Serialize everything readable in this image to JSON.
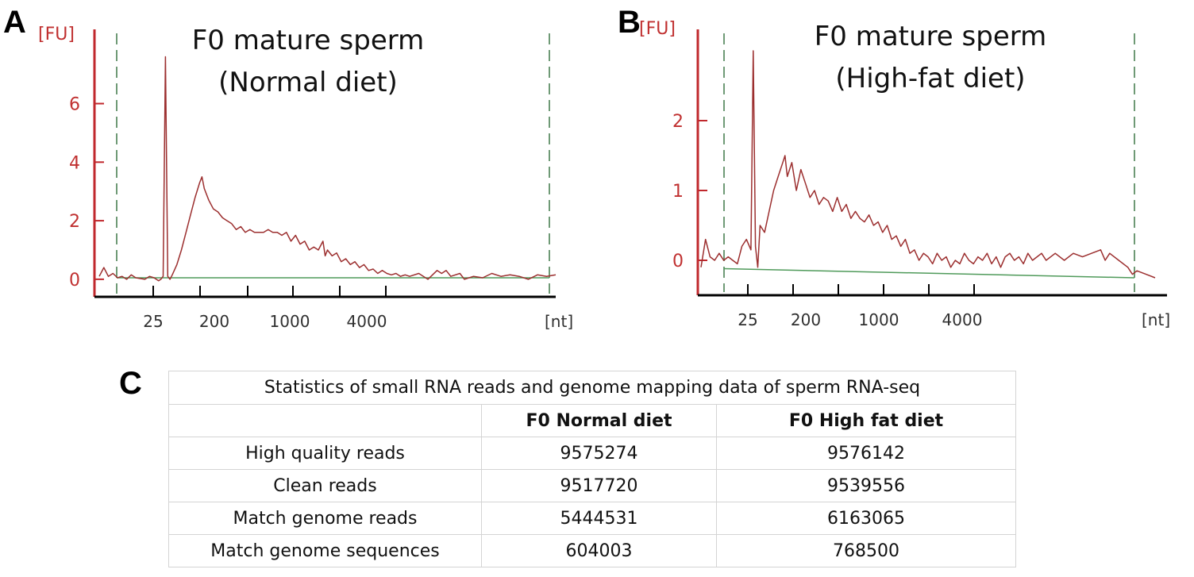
{
  "panels": [
    {
      "letter": "A",
      "title_line1": "F0 mature sperm",
      "title_line2": "(Normal diet)"
    },
    {
      "letter": "B",
      "title_line1": "F0 mature sperm",
      "title_line2": "(High-fat diet)"
    },
    {
      "letter": "C"
    }
  ],
  "colors": {
    "axis": "#c0282d",
    "trace": "#9c2f2f",
    "baseline": "#4f9a5a",
    "marker": "#6f9a76"
  },
  "chart_data": [
    {
      "type": "line",
      "title": "F0 mature sperm (Normal diet)",
      "ylabel": "[FU]",
      "xlabel": "[nt]",
      "yticks": [
        0,
        2,
        4,
        6
      ],
      "ylim": [
        -0.6,
        8.4
      ],
      "xlim": [
        0,
        100
      ],
      "xtick_labels": [
        "25",
        "200",
        "1000",
        "4000"
      ],
      "series": [
        {
          "values": [
            [
              0,
              0.1
            ],
            [
              1,
              0.4
            ],
            [
              2,
              0.1
            ],
            [
              3,
              0.2
            ],
            [
              4,
              0.05
            ],
            [
              5,
              0.1
            ],
            [
              6,
              0
            ],
            [
              7,
              0.15
            ],
            [
              8,
              0.05
            ],
            [
              10,
              0
            ],
            [
              11,
              0.1
            ],
            [
              12,
              0.05
            ],
            [
              13,
              -0.05
            ],
            [
              13.5,
              0
            ],
            [
              14,
              0.1
            ],
            [
              14.5,
              7.6
            ],
            [
              15,
              0.1
            ],
            [
              15.5,
              0
            ],
            [
              16,
              0.15
            ],
            [
              17,
              0.5
            ],
            [
              18,
              1.0
            ],
            [
              19,
              1.6
            ],
            [
              20,
              2.2
            ],
            [
              21,
              2.8
            ],
            [
              22,
              3.3
            ],
            [
              22.5,
              3.5
            ],
            [
              23,
              3.1
            ],
            [
              24,
              2.7
            ],
            [
              25,
              2.4
            ],
            [
              26,
              2.3
            ],
            [
              27,
              2.1
            ],
            [
              28,
              2.0
            ],
            [
              29,
              1.9
            ],
            [
              30,
              1.7
            ],
            [
              31,
              1.8
            ],
            [
              32,
              1.6
            ],
            [
              33,
              1.7
            ],
            [
              34,
              1.6
            ],
            [
              35,
              1.6
            ],
            [
              36,
              1.6
            ],
            [
              37,
              1.7
            ],
            [
              38,
              1.6
            ],
            [
              39,
              1.6
            ],
            [
              40,
              1.5
            ],
            [
              41,
              1.6
            ],
            [
              42,
              1.3
            ],
            [
              43,
              1.5
            ],
            [
              44,
              1.2
            ],
            [
              45,
              1.3
            ],
            [
              46,
              1.0
            ],
            [
              47,
              1.1
            ],
            [
              48,
              1.0
            ],
            [
              49,
              1.3
            ],
            [
              49.5,
              0.8
            ],
            [
              50,
              1.0
            ],
            [
              51,
              0.8
            ],
            [
              52,
              0.9
            ],
            [
              53,
              0.6
            ],
            [
              54,
              0.7
            ],
            [
              55,
              0.5
            ],
            [
              56,
              0.6
            ],
            [
              57,
              0.4
            ],
            [
              58,
              0.5
            ],
            [
              59,
              0.3
            ],
            [
              60,
              0.35
            ],
            [
              61,
              0.2
            ],
            [
              62,
              0.3
            ],
            [
              63,
              0.2
            ],
            [
              64,
              0.15
            ],
            [
              65,
              0.2
            ],
            [
              66,
              0.1
            ],
            [
              67,
              0.15
            ],
            [
              68,
              0.1
            ],
            [
              70,
              0.2
            ],
            [
              71,
              0.1
            ],
            [
              72,
              0
            ],
            [
              74,
              0.3
            ],
            [
              75,
              0.2
            ],
            [
              76,
              0.3
            ],
            [
              77,
              0.1
            ],
            [
              79,
              0.2
            ],
            [
              80,
              0
            ],
            [
              82,
              0.1
            ],
            [
              84,
              0.05
            ],
            [
              86,
              0.2
            ],
            [
              88,
              0.1
            ],
            [
              90,
              0.15
            ],
            [
              92,
              0.1
            ],
            [
              94,
              0
            ],
            [
              96,
              0.15
            ],
            [
              98,
              0.1
            ],
            [
              100,
              0.15
            ]
          ]
        }
      ]
    },
    {
      "type": "line",
      "title": "F0 mature sperm (High-fat diet)",
      "ylabel": "[FU]",
      "xlabel": "[nt]",
      "yticks": [
        0,
        1,
        2
      ],
      "ylim": [
        -0.5,
        3.25
      ],
      "xlim": [
        0,
        100
      ],
      "xtick_labels": [
        "25",
        "200",
        "1000",
        "4000"
      ],
      "series": [
        {
          "values": [
            [
              0,
              -0.1
            ],
            [
              1,
              0.3
            ],
            [
              2,
              0.05
            ],
            [
              3,
              0
            ],
            [
              4,
              0.1
            ],
            [
              5,
              0
            ],
            [
              6,
              0.05
            ],
            [
              7,
              0
            ],
            [
              8,
              -0.05
            ],
            [
              9,
              0.2
            ],
            [
              10,
              0.3
            ],
            [
              11,
              0.15
            ],
            [
              11.5,
              3.0
            ],
            [
              12,
              0.2
            ],
            [
              12.5,
              -0.1
            ],
            [
              13,
              0.5
            ],
            [
              14,
              0.4
            ],
            [
              15,
              0.7
            ],
            [
              16,
              1.0
            ],
            [
              17,
              1.2
            ],
            [
              18,
              1.4
            ],
            [
              18.5,
              1.5
            ],
            [
              19,
              1.2
            ],
            [
              20,
              1.4
            ],
            [
              21,
              1.0
            ],
            [
              22,
              1.3
            ],
            [
              23,
              1.1
            ],
            [
              24,
              0.9
            ],
            [
              25,
              1.0
            ],
            [
              26,
              0.8
            ],
            [
              27,
              0.9
            ],
            [
              28,
              0.85
            ],
            [
              29,
              0.7
            ],
            [
              30,
              0.9
            ],
            [
              31,
              0.7
            ],
            [
              32,
              0.8
            ],
            [
              33,
              0.6
            ],
            [
              34,
              0.7
            ],
            [
              35,
              0.6
            ],
            [
              36,
              0.55
            ],
            [
              37,
              0.65
            ],
            [
              38,
              0.5
            ],
            [
              39,
              0.55
            ],
            [
              40,
              0.4
            ],
            [
              41,
              0.5
            ],
            [
              42,
              0.3
            ],
            [
              43,
              0.35
            ],
            [
              44,
              0.2
            ],
            [
              45,
              0.3
            ],
            [
              46,
              0.1
            ],
            [
              47,
              0.15
            ],
            [
              48,
              0
            ],
            [
              49,
              0.1
            ],
            [
              50,
              0.05
            ],
            [
              51,
              -0.05
            ],
            [
              52,
              0.1
            ],
            [
              53,
              0
            ],
            [
              54,
              0.05
            ],
            [
              55,
              -0.1
            ],
            [
              56,
              0
            ],
            [
              57,
              -0.05
            ],
            [
              58,
              0.1
            ],
            [
              59,
              0
            ],
            [
              60,
              -0.05
            ],
            [
              61,
              0.05
            ],
            [
              62,
              0
            ],
            [
              63,
              0.1
            ],
            [
              64,
              -0.05
            ],
            [
              65,
              0.05
            ],
            [
              66,
              -0.1
            ],
            [
              67,
              0.05
            ],
            [
              68,
              0.1
            ],
            [
              69,
              0
            ],
            [
              70,
              0.05
            ],
            [
              71,
              -0.05
            ],
            [
              72,
              0.1
            ],
            [
              73,
              0
            ],
            [
              74,
              0.05
            ],
            [
              75,
              0.1
            ],
            [
              76,
              0
            ],
            [
              78,
              0.1
            ],
            [
              80,
              0
            ],
            [
              82,
              0.1
            ],
            [
              84,
              0.05
            ],
            [
              86,
              0.1
            ],
            [
              88,
              0.15
            ],
            [
              89,
              0
            ],
            [
              90,
              0.1
            ],
            [
              92,
              0
            ],
            [
              94,
              -0.1
            ],
            [
              95,
              -0.2
            ],
            [
              96,
              -0.15
            ],
            [
              98,
              -0.2
            ],
            [
              100,
              -0.25
            ]
          ]
        }
      ]
    },
    {
      "type": "table",
      "title": "Statistics of small RNA reads and genome mapping data of sperm RNA-seq",
      "columns": [
        "",
        "F0 Normal diet",
        "F0 High fat diet"
      ],
      "rows": [
        [
          "High quality reads",
          "9575274",
          "9576142"
        ],
        [
          "Clean reads",
          "9517720",
          "9539556"
        ],
        [
          "Match genome reads",
          "5444531",
          "6163065"
        ],
        [
          "Match genome sequences",
          "604003",
          "768500"
        ]
      ]
    }
  ]
}
